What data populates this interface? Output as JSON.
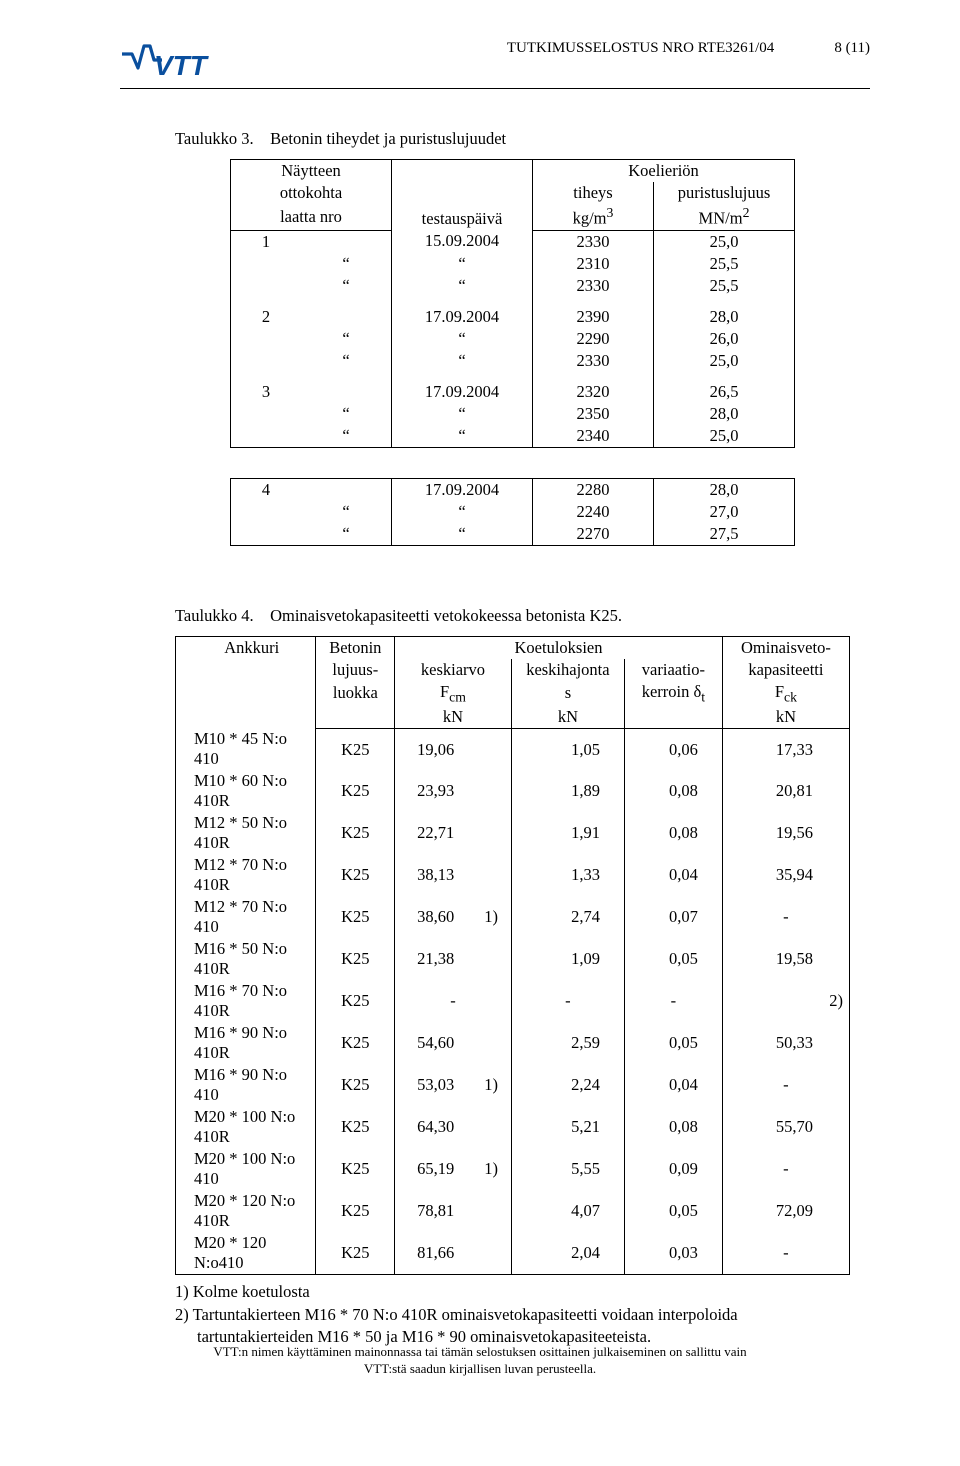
{
  "header": {
    "title": "TUTKIMUSSELOSTUS NRO RTE3261/04",
    "page": "8 (11)",
    "logo_text": "VTT",
    "logo_color": "#0a4f9e"
  },
  "table3": {
    "caption_prefix": "Taulukko 3.",
    "caption": "Betonin tiheydet ja puristuslujuudet",
    "head": {
      "c1a": "Näytteen",
      "c1b": "ottokohta",
      "c1c": "laatta nro",
      "c2": "testauspäivä",
      "c3a": "tiheys",
      "c3b": "kg/m",
      "c4a": "Koelieriön",
      "c4b": "puristuslujuus",
      "c4c": "MN/m"
    },
    "blocks": [
      {
        "id": "1",
        "date": "15.09.2004",
        "rows": [
          [
            "2330",
            "25,0"
          ],
          [
            "2310",
            "25,5"
          ],
          [
            "2330",
            "25,5"
          ]
        ]
      },
      {
        "id": "2",
        "date": "17.09.2004",
        "rows": [
          [
            "2390",
            "28,0"
          ],
          [
            "2290",
            "26,0"
          ],
          [
            "2330",
            "25,0"
          ]
        ]
      },
      {
        "id": "3",
        "date": "17.09.2004",
        "rows": [
          [
            "2320",
            "26,5"
          ],
          [
            "2350",
            "28,0"
          ],
          [
            "2340",
            "25,0"
          ]
        ]
      },
      {
        "id": "4",
        "date": "17.09.2004",
        "rows": [
          [
            "2280",
            "28,0"
          ],
          [
            "2240",
            "27,0"
          ],
          [
            "2270",
            "27,5"
          ]
        ]
      }
    ]
  },
  "table4": {
    "caption_prefix": "Taulukko 4.",
    "caption": "Ominaisvetokapasiteetti vetokokeessa betonista K25.",
    "head": {
      "ank": "Ankkuri",
      "bet1": "Betonin",
      "bet2": "lujuus-",
      "bet3": "luokka",
      "grp": "Koetuloksien",
      "ka1": "keskiarvo",
      "ka2": "F",
      "ka2sub": "cm",
      "ka3": "kN",
      "kh1": "keskihajonta",
      "kh2": "s",
      "kh3": "kN",
      "vk1": "variaatio-",
      "vk2": "kerroin δ",
      "vk2sub": "t",
      "om1": "Ominaisveto-",
      "om2": "kapasiteetti",
      "om3": "F",
      "om3sub": "ck",
      "om4": "kN"
    },
    "rows": [
      {
        "a": "M10 * 45 N:o 410",
        "lk": "K25",
        "ka": "19,06",
        "note": "",
        "kh": "1,05",
        "vk": "0,06",
        "om": "17,33"
      },
      {
        "a": "M10 * 60 N:o 410R",
        "lk": "K25",
        "ka": "23,93",
        "note": "",
        "kh": "1,89",
        "vk": "0,08",
        "om": "20,81"
      },
      {
        "a": "M12 * 50 N:o 410R",
        "lk": "K25",
        "ka": "22,71",
        "note": "",
        "kh": "1,91",
        "vk": "0,08",
        "om": "19,56"
      },
      {
        "a": "M12 * 70 N:o 410R",
        "lk": "K25",
        "ka": "38,13",
        "note": "",
        "kh": "1,33",
        "vk": "0,04",
        "om": "35,94"
      },
      {
        "a": "M12 * 70 N:o 410",
        "lk": "K25",
        "ka": "38,60",
        "note": "1)",
        "kh": "2,74",
        "vk": "0,07",
        "om": "-"
      },
      {
        "a": "M16 * 50 N:o 410R",
        "lk": "K25",
        "ka": "21,38",
        "note": "",
        "kh": "1,09",
        "vk": "0,05",
        "om": "19,58"
      },
      {
        "a": "M16 * 70 N:o 410R",
        "lk": "K25",
        "ka": "-",
        "note": "",
        "kh": "-",
        "vk": "-",
        "om": "2)"
      },
      {
        "a": "M16 * 90 N:o 410R",
        "lk": "K25",
        "ka": "54,60",
        "note": "",
        "kh": "2,59",
        "vk": "0,05",
        "om": "50,33"
      },
      {
        "a": "M16 * 90 N:o 410",
        "lk": "K25",
        "ka": "53,03",
        "note": "1)",
        "kh": "2,24",
        "vk": "0,04",
        "om": "-"
      },
      {
        "a": "M20 * 100 N:o 410R",
        "lk": "K25",
        "ka": "64,30",
        "note": "",
        "kh": "5,21",
        "vk": "0,08",
        "om": "55,70"
      },
      {
        "a": "M20 * 100 N:o 410",
        "lk": "K25",
        "ka": "65,19",
        "note": "1)",
        "kh": "5,55",
        "vk": "0,09",
        "om": "-"
      },
      {
        "a": "M20 * 120 N:o 410R",
        "lk": "K25",
        "ka": "78,81",
        "note": "",
        "kh": "4,07",
        "vk": "0,05",
        "om": "72,09"
      },
      {
        "a": "M20 * 120 N:o410",
        "lk": "K25",
        "ka": "81,66",
        "note": "",
        "kh": "2,04",
        "vk": "0,03",
        "om": "-"
      }
    ],
    "footnotes": [
      "1) Kolme koetulosta",
      "2) Tartuntakierteen M16 * 70 N:o 410R ominaisvetokapasiteetti voidaan interpoloida",
      "tartuntakierteiden M16 * 50 ja M16 * 90 ominaisvetokapasiteeteista."
    ]
  },
  "footer": {
    "l1": "VTT:n nimen käyttäminen mainonnassa tai tämän selostuksen osittainen julkaiseminen on sallittu vain",
    "l2": "VTT:stä saadun kirjallisen luvan perusteella."
  }
}
